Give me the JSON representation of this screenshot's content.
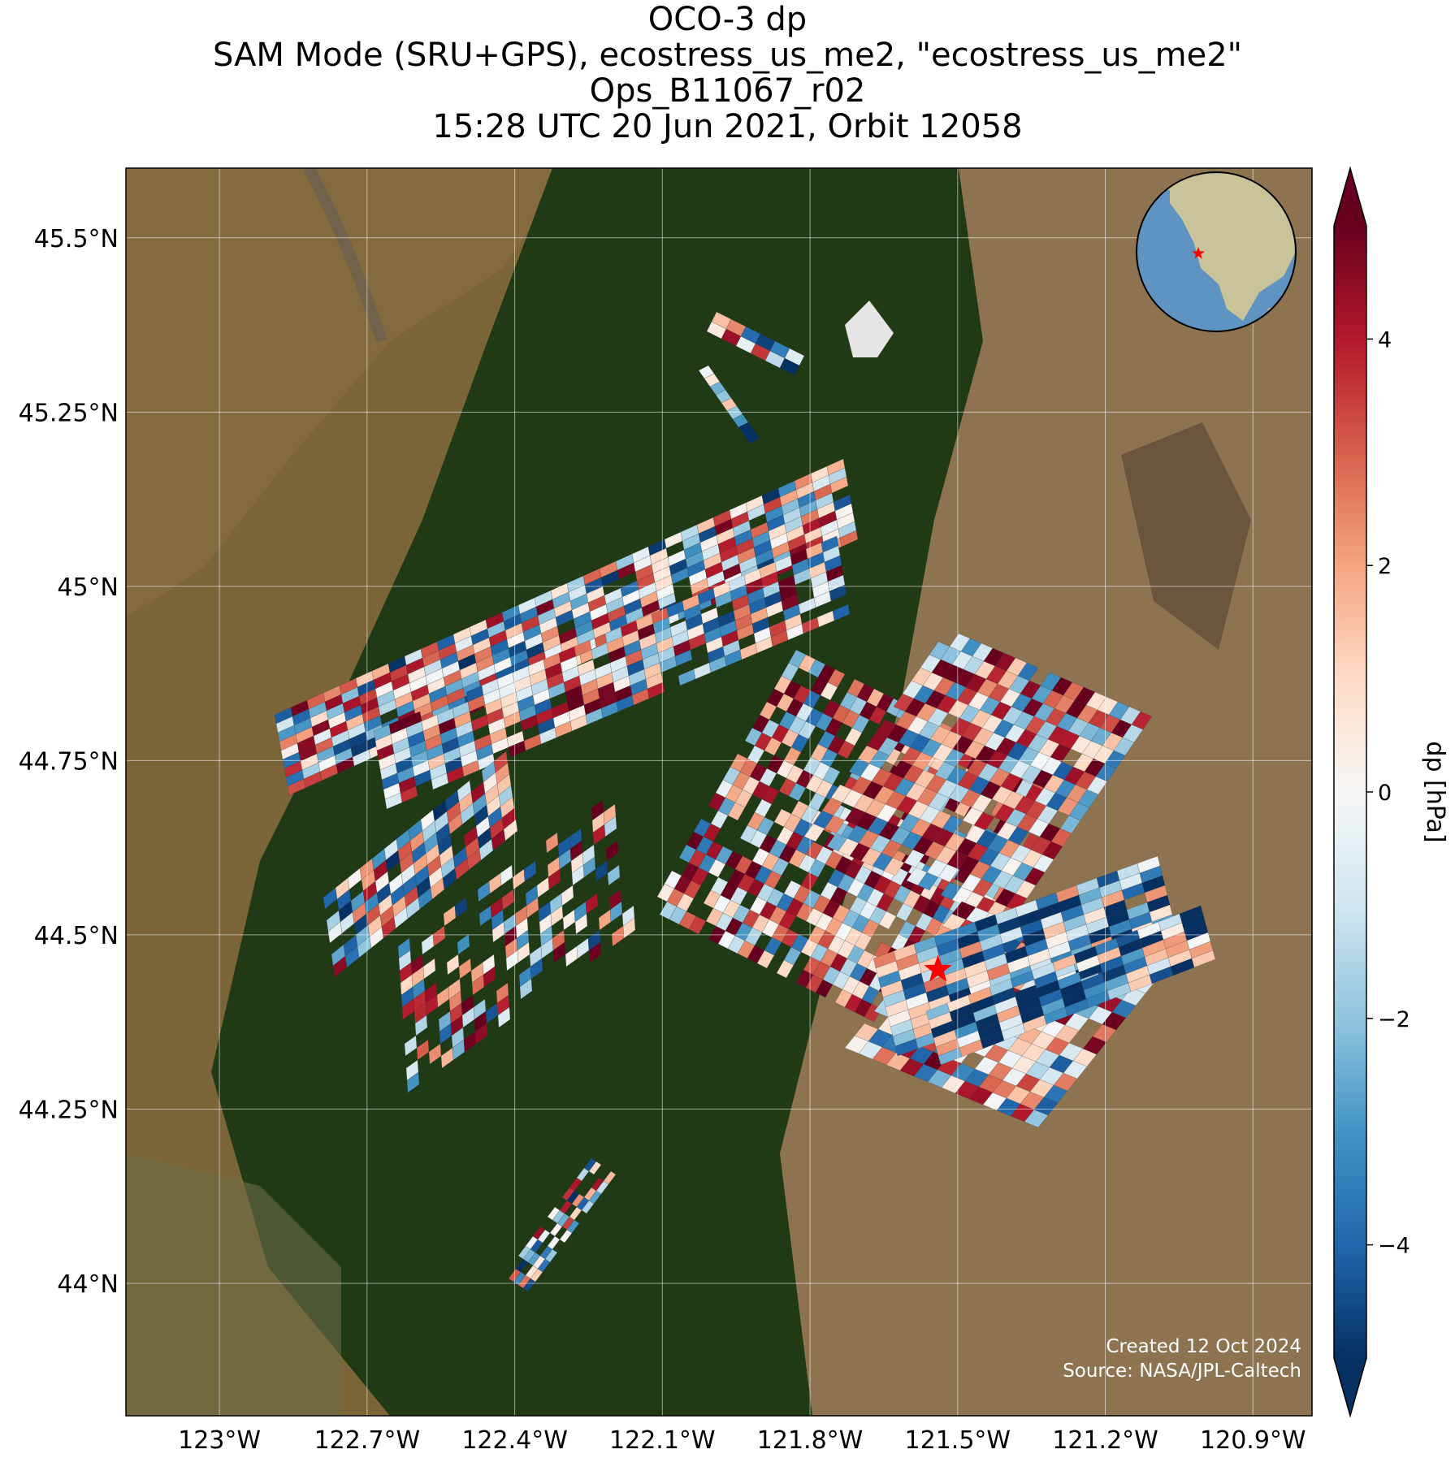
{
  "title": {
    "line1": "OCO-3 dp",
    "line2": "SAM Mode (SRU+GPS), ecostress_us_me2, \"ecostress_us_me2\"",
    "line3": "Ops_B11067_r02",
    "line4": "15:28 UTC 20 Jun 2021, Orbit 12058"
  },
  "map": {
    "lon_range": [
      -123.19,
      -120.78
    ],
    "lat_range": [
      43.81,
      45.6
    ],
    "lon_ticks": [
      {
        "value": -123.0,
        "label": "123°W"
      },
      {
        "value": -122.7,
        "label": "122.7°W"
      },
      {
        "value": -122.4,
        "label": "122.4°W"
      },
      {
        "value": -122.1,
        "label": "122.1°W"
      },
      {
        "value": -121.8,
        "label": "121.8°W"
      },
      {
        "value": -121.5,
        "label": "121.5°W"
      },
      {
        "value": -121.2,
        "label": "121.2°W"
      },
      {
        "value": -120.9,
        "label": "120.9°W"
      }
    ],
    "lat_ticks": [
      {
        "value": 45.5,
        "label": "45.5°N"
      },
      {
        "value": 45.25,
        "label": "45.25°N"
      },
      {
        "value": 45.0,
        "label": "45°N"
      },
      {
        "value": 44.75,
        "label": "44.75°N"
      },
      {
        "value": 44.5,
        "label": "44.5°N"
      },
      {
        "value": 44.25,
        "label": "44.25°N"
      },
      {
        "value": 44.0,
        "label": "44°N"
      }
    ],
    "target_marker": {
      "lon": -121.54,
      "lat": 44.45,
      "color": "#ff0000",
      "symbol": "star"
    },
    "basemap_colors": {
      "forest": "#1f3a14",
      "farmland": "#7a6438",
      "high_desert": "#8e7350",
      "snow": "#e6e6e6"
    }
  },
  "colorbar": {
    "label": "dp [hPa]",
    "min": -5,
    "max": 5,
    "extend": "both",
    "colormap": "RdBu_r",
    "ticks": [
      {
        "value": 4,
        "label": "4"
      },
      {
        "value": 2,
        "label": "2"
      },
      {
        "value": 0,
        "label": "0"
      },
      {
        "value": -2,
        "label": "−2"
      },
      {
        "value": -4,
        "label": "−4"
      }
    ]
  },
  "inset_globe": {
    "ocean_color": "#5e93c2",
    "land_color": "#c9c39a",
    "marker_color": "#ff0000"
  },
  "credits": {
    "created": "Created 12 Oct 2024",
    "source": "Source: NASA/JPL-Caltech"
  }
}
